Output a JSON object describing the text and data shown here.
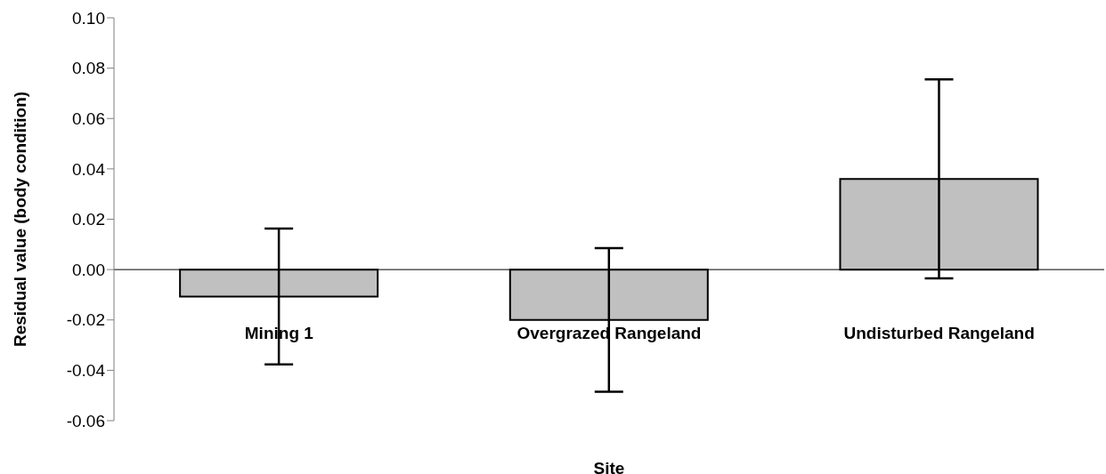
{
  "chart_data": {
    "type": "bar",
    "xlabel": "Site",
    "ylabel": "Residual value (body condition)",
    "categories": [
      "Mining 1",
      "Overgrazed Rangeland",
      "Undisturbed Rangeland"
    ],
    "values": [
      -0.0107,
      -0.02,
      0.036
    ],
    "errors": [
      0.027,
      0.0285,
      0.0395
    ],
    "color": "#c0c0c0",
    "ylim": [
      -0.06,
      0.1
    ],
    "yticks": [
      {
        "value": -0.06,
        "label": "-0.06"
      },
      {
        "value": -0.04,
        "label": "-0.04"
      },
      {
        "value": -0.02,
        "label": "-0.02"
      },
      {
        "value": 0,
        "label": "0.00"
      },
      {
        "value": 0.02,
        "label": "0.02"
      },
      {
        "value": 0.04,
        "label": "0.04"
      },
      {
        "value": 0.06,
        "label": "0.06"
      },
      {
        "value": 0.08,
        "label": "0.08"
      },
      {
        "value": 0.1,
        "label": "0.10"
      }
    ],
    "ref_lines": [
      {
        "axis": "y",
        "value": 0,
        "color": "#000000"
      }
    ]
  }
}
